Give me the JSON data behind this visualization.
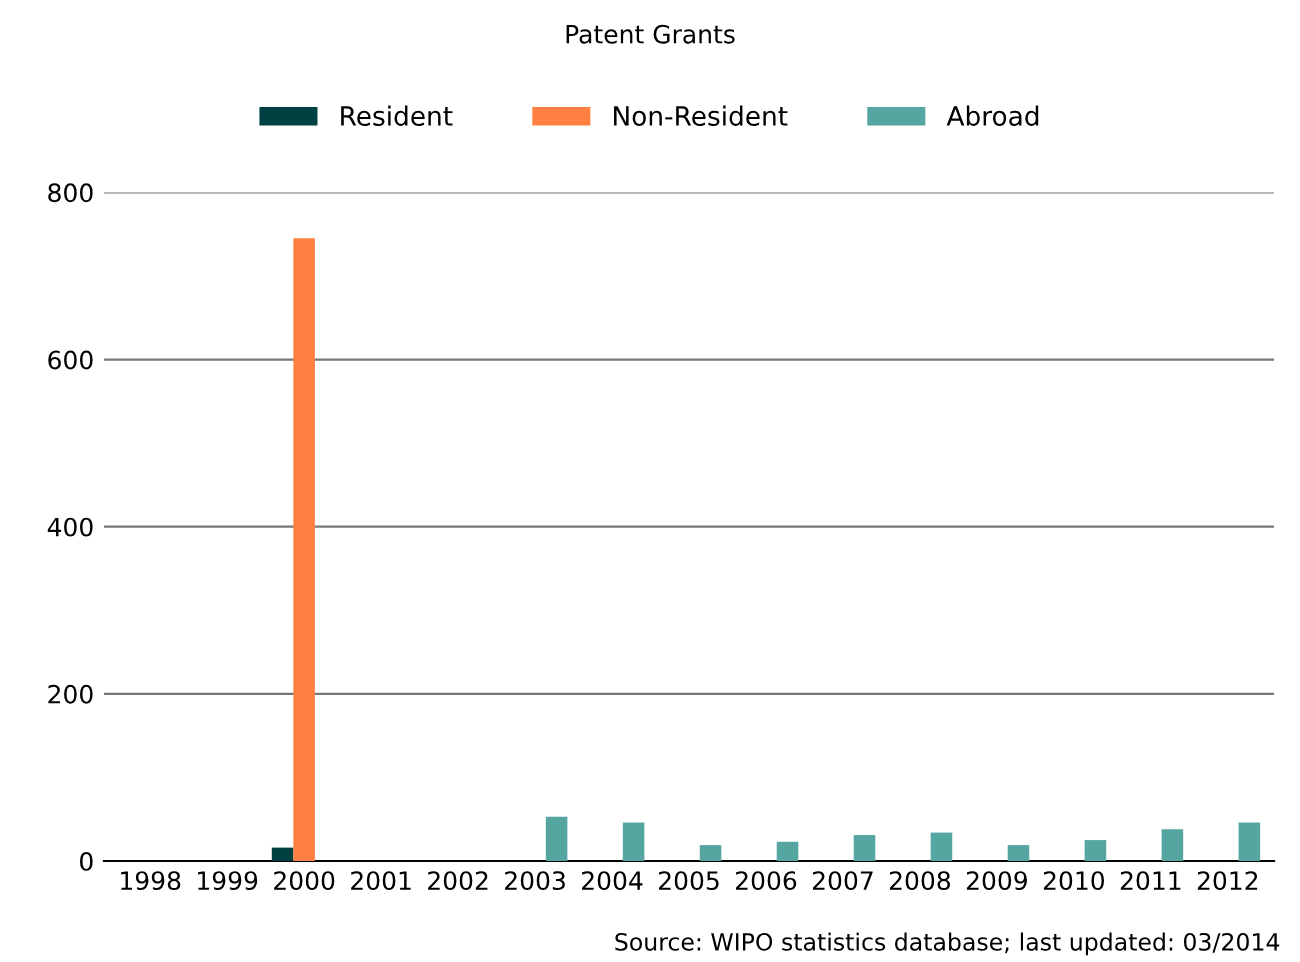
{
  "chart_data": {
    "type": "bar",
    "title": "Patent Grants",
    "categories": [
      "1998",
      "1999",
      "2000",
      "2001",
      "2002",
      "2003",
      "2004",
      "2005",
      "2006",
      "2007",
      "2008",
      "2009",
      "2010",
      "2011",
      "2012"
    ],
    "series": [
      {
        "name": "Resident",
        "color": "#004040",
        "values": [
          null,
          null,
          16,
          null,
          null,
          null,
          null,
          null,
          null,
          null,
          null,
          null,
          null,
          null,
          null
        ]
      },
      {
        "name": "Non-Resident",
        "color": "#ff8040",
        "values": [
          null,
          null,
          745,
          null,
          null,
          null,
          null,
          null,
          null,
          null,
          null,
          null,
          null,
          null,
          null
        ]
      },
      {
        "name": "Abroad",
        "color": "#55a5a0",
        "values": [
          null,
          null,
          null,
          null,
          null,
          53,
          46,
          19,
          23,
          31,
          34,
          19,
          25,
          38,
          46
        ]
      }
    ],
    "ylim": [
      0,
      800
    ],
    "yticks": [
      0,
      200,
      400,
      600,
      800
    ],
    "grid": "y",
    "legend": "top",
    "annotations": [
      "Source: WIPO statistics database; last updated: 03/2014"
    ]
  }
}
